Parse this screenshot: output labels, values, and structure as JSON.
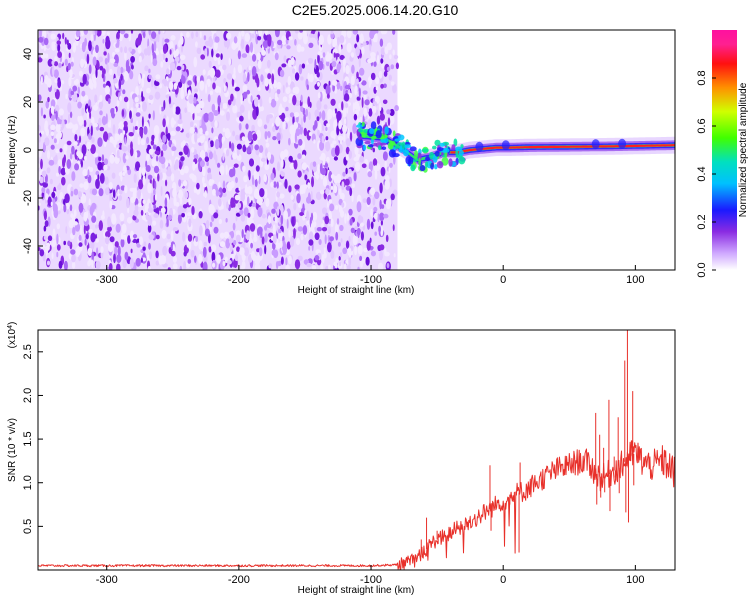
{
  "figure": {
    "title": "C2E5.2025.006.14.20.G10"
  },
  "chart_data": [
    {
      "type": "heatmap",
      "xlabel": "Height of straight line (km)",
      "ylabel": "Frequency (Hz)",
      "xlim": [
        -352,
        130
      ],
      "ylim": [
        -50,
        50
      ],
      "x_ticks": [
        -300,
        -200,
        -100,
        0,
        100
      ],
      "y_ticks": [
        -40,
        -20,
        0,
        20,
        40
      ],
      "noise_region_x": [
        -352,
        -80
      ],
      "signal_line": {
        "x": [
          -110,
          -90,
          -75,
          -65,
          -55,
          -45,
          -35,
          -25,
          -15,
          -5,
          5,
          20,
          40,
          60,
          75,
          90,
          100,
          130
        ],
        "freq": [
          6,
          5,
          0,
          -4,
          -3,
          -1,
          -1,
          0,
          0.5,
          1,
          1,
          1.2,
          1.3,
          1.4,
          1.5,
          1.6,
          1.7,
          2
        ]
      },
      "colorbar": {
        "label": "Normalized spectral amplitude",
        "range": [
          0,
          1
        ],
        "ticks": [
          0.0,
          0.2,
          0.4,
          0.6,
          0.8
        ],
        "colormap": [
          "#ffffff",
          "#8a2be2",
          "#0000ff",
          "#00ffff",
          "#00ff00",
          "#ffff00",
          "#ff8000",
          "#ff0000",
          "#ff00ff"
        ]
      }
    },
    {
      "type": "line",
      "xlabel": "Height of straight line (km)",
      "ylabel": "SNR (10 * v/v)",
      "y_multiplier": "(x10",
      "y_multiplier_exp": "4",
      "y_multiplier_close": ")",
      "xlim": [
        -352,
        130
      ],
      "ylim": [
        0,
        2.75
      ],
      "x_ticks": [
        -300,
        -200,
        -100,
        0,
        100
      ],
      "y_ticks": [
        0.5,
        1.0,
        1.5,
        2.0,
        2.5
      ],
      "y_tick_labels": [
        "0.5",
        "1.0",
        "1.5",
        "2.0",
        "2.5"
      ],
      "line_color": "#e8302a",
      "series": [
        {
          "x": [
            -352,
            -300,
            -250,
            -200,
            -150,
            -100,
            -80,
            -70,
            -60,
            -55,
            -50,
            -45,
            -40,
            -35,
            -30,
            -25,
            -20,
            -15,
            -10,
            -5,
            0,
            5,
            10,
            15,
            20,
            25,
            30,
            35,
            40,
            45,
            50,
            55,
            60,
            65,
            70,
            75,
            80,
            85,
            90,
            95,
            100,
            105,
            110,
            115,
            120,
            125,
            130
          ],
          "y": [
            0.05,
            0.05,
            0.05,
            0.05,
            0.05,
            0.05,
            0.06,
            0.1,
            0.2,
            0.3,
            0.35,
            0.38,
            0.42,
            0.48,
            0.5,
            0.55,
            0.6,
            0.65,
            0.7,
            0.75,
            0.8,
            0.82,
            0.88,
            0.9,
            0.95,
            1.0,
            1.05,
            1.1,
            1.15,
            1.17,
            1.2,
            1.23,
            1.25,
            1.22,
            1.1,
            1.05,
            1.1,
            1.15,
            1.2,
            1.3,
            1.35,
            1.25,
            1.2,
            1.2,
            1.25,
            1.2,
            1.1
          ]
        }
      ],
      "spikes": {
        "x": [
          -62,
          -58,
          -50,
          -42,
          -30,
          -10,
          5,
          12,
          70,
          73,
          76,
          80,
          84,
          87,
          92,
          94,
          96,
          98
        ],
        "y": [
          0.35,
          0.6,
          0.45,
          0.4,
          0.5,
          1.2,
          0.75,
          0.2,
          1.8,
          1.55,
          1.4,
          1.95,
          1.3,
          1.75,
          2.4,
          2.75,
          1.25,
          2.05
        ]
      }
    }
  ]
}
